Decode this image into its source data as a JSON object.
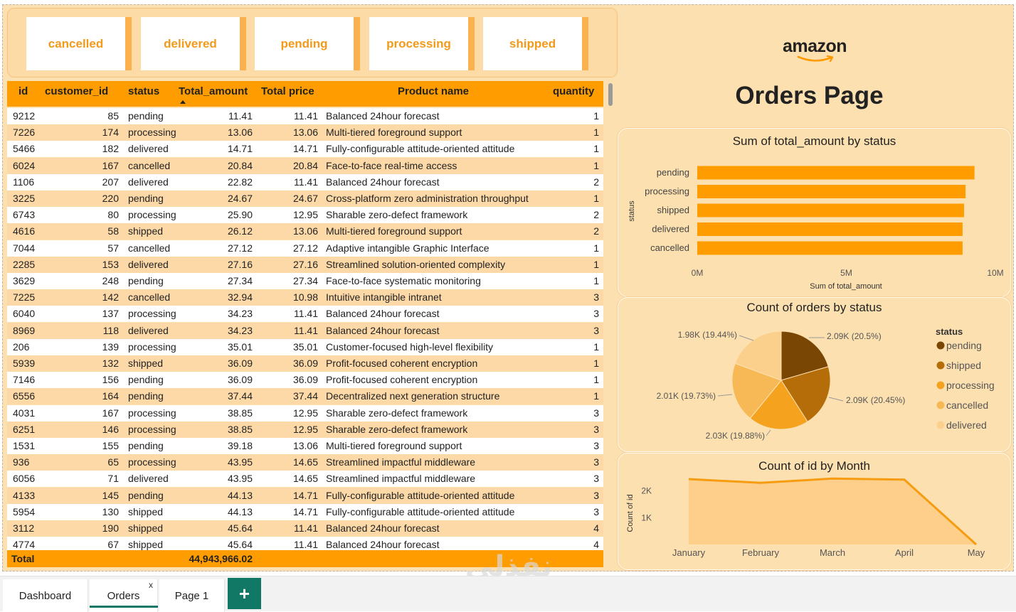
{
  "slicer": {
    "options": [
      "cancelled",
      "delivered",
      "pending",
      "processing",
      "shipped"
    ]
  },
  "table": {
    "columns": [
      "id",
      "customer_id",
      "status",
      "Total_amount",
      "Total price",
      "Product name",
      "quantity"
    ],
    "sort_column": "Total_amount",
    "rows": [
      [
        "9212",
        "85",
        "pending",
        "11.41",
        "11.41",
        "Balanced 24hour forecast",
        "1"
      ],
      [
        "7226",
        "174",
        "processing",
        "13.06",
        "13.06",
        "Multi-tiered foreground support",
        "1"
      ],
      [
        "5466",
        "182",
        "delivered",
        "14.71",
        "14.71",
        "Fully-configurable attitude-oriented attitude",
        "1"
      ],
      [
        "6024",
        "167",
        "cancelled",
        "20.84",
        "20.84",
        "Face-to-face real-time access",
        "1"
      ],
      [
        "1106",
        "207",
        "delivered",
        "22.82",
        "11.41",
        "Balanced 24hour forecast",
        "2"
      ],
      [
        "3225",
        "220",
        "pending",
        "24.67",
        "24.67",
        "Cross-platform zero administration throughput",
        "1"
      ],
      [
        "6743",
        "80",
        "processing",
        "25.90",
        "12.95",
        "Sharable zero-defect framework",
        "2"
      ],
      [
        "4616",
        "58",
        "shipped",
        "26.12",
        "13.06",
        "Multi-tiered foreground support",
        "2"
      ],
      [
        "7044",
        "57",
        "cancelled",
        "27.12",
        "27.12",
        "Adaptive intangible Graphic Interface",
        "1"
      ],
      [
        "2285",
        "153",
        "delivered",
        "27.16",
        "27.16",
        "Streamlined solution-oriented complexity",
        "1"
      ],
      [
        "3629",
        "248",
        "pending",
        "27.34",
        "27.34",
        "Face-to-face systematic monitoring",
        "1"
      ],
      [
        "7225",
        "142",
        "cancelled",
        "32.94",
        "10.98",
        "Intuitive intangible intranet",
        "3"
      ],
      [
        "6040",
        "137",
        "processing",
        "34.23",
        "11.41",
        "Balanced 24hour forecast",
        "3"
      ],
      [
        "8969",
        "118",
        "delivered",
        "34.23",
        "11.41",
        "Balanced 24hour forecast",
        "3"
      ],
      [
        "206",
        "139",
        "processing",
        "35.01",
        "35.01",
        "Customer-focused high-level flexibility",
        "1"
      ],
      [
        "5939",
        "132",
        "shipped",
        "36.09",
        "36.09",
        "Profit-focused coherent encryption",
        "1"
      ],
      [
        "7146",
        "156",
        "pending",
        "36.09",
        "36.09",
        "Profit-focused coherent encryption",
        "1"
      ],
      [
        "6556",
        "164",
        "pending",
        "37.44",
        "37.44",
        "Decentralized next generation structure",
        "1"
      ],
      [
        "4031",
        "167",
        "processing",
        "38.85",
        "12.95",
        "Sharable zero-defect framework",
        "3"
      ],
      [
        "6251",
        "146",
        "processing",
        "38.85",
        "12.95",
        "Sharable zero-defect framework",
        "3"
      ],
      [
        "1531",
        "155",
        "pending",
        "39.18",
        "13.06",
        "Multi-tiered foreground support",
        "3"
      ],
      [
        "936",
        "65",
        "processing",
        "43.95",
        "14.65",
        "Streamlined impactful middleware",
        "3"
      ],
      [
        "6056",
        "71",
        "delivered",
        "43.95",
        "14.65",
        "Streamlined impactful middleware",
        "3"
      ],
      [
        "4133",
        "145",
        "pending",
        "44.13",
        "14.71",
        "Fully-configurable attitude-oriented attitude",
        "3"
      ],
      [
        "5954",
        "130",
        "shipped",
        "44.13",
        "14.71",
        "Fully-configurable attitude-oriented attitude",
        "3"
      ],
      [
        "3112",
        "190",
        "shipped",
        "45.64",
        "11.41",
        "Balanced 24hour forecast",
        "4"
      ],
      [
        "4774",
        "67",
        "shipped",
        "45.64",
        "11.41",
        "Balanced 24hour forecast",
        "4"
      ]
    ],
    "total_label": "Total",
    "total_amount": "44,943,966.02"
  },
  "brand": {
    "logo_text": "amazon",
    "logo_icon": "amazon-smile-icon"
  },
  "page": {
    "title": "Orders Page"
  },
  "colors": {
    "background": "#fde0b0",
    "accent": "#ff9c00",
    "pie": [
      "#7a4604",
      "#b46d08",
      "#f5a21f",
      "#f7b955",
      "#fad08c"
    ]
  },
  "chart_data": [
    {
      "type": "bar",
      "orientation": "horizontal",
      "title": "Sum of total_amount by status",
      "xlabel": "Sum of total_amount",
      "ylabel": "status",
      "categories": [
        "pending",
        "processing",
        "shipped",
        "delivered",
        "cancelled"
      ],
      "values": [
        9.3,
        9.0,
        8.95,
        8.9,
        8.9
      ],
      "xlim": [
        0,
        10
      ],
      "xticks": [
        "0M",
        "5M",
        "10M"
      ],
      "color": "#ff9c00"
    },
    {
      "type": "pie",
      "title": "Count of orders by status",
      "legend_title": "status",
      "legend_position": "right",
      "categories": [
        "pending",
        "shipped",
        "processing",
        "cancelled",
        "delivered"
      ],
      "values": [
        2090,
        2090,
        2030,
        2010,
        1980
      ],
      "labels": [
        "2.09K (20.5%)",
        "2.09K (20.45%)",
        "2.03K (19.88%)",
        "2.01K (19.73%)",
        "1.98K (19.44%)"
      ]
    },
    {
      "type": "area",
      "title": "Count of id by Month",
      "xlabel": "",
      "ylabel": "Count of id",
      "categories": [
        "January",
        "February",
        "March",
        "April",
        "May"
      ],
      "values": [
        2440,
        2300,
        2460,
        2420,
        0
      ],
      "ylim": [
        0,
        2600
      ],
      "yticks": [
        "1K",
        "2K"
      ],
      "color": "#f59c11"
    }
  ],
  "tabs": {
    "items": [
      "Dashboard",
      "Orders",
      "Page 1"
    ],
    "active": "Orders",
    "close_label": "x",
    "add_label": "+"
  },
  "watermark": {
    "text": "nafezly.com"
  }
}
